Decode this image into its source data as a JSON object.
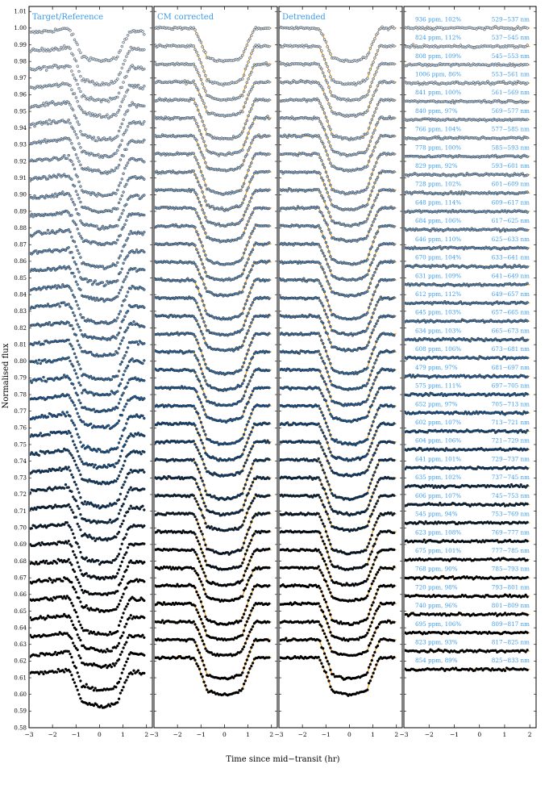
{
  "chart_data": {
    "type": "scatter",
    "ylabel": "Normalised flux",
    "xlabel": "Time since mid−transit (hr)",
    "xlim": [
      -3,
      2.25
    ],
    "ylim": [
      0.58,
      1.013
    ],
    "x_ticks": [
      "−3",
      "−2",
      "−1",
      "0",
      "1",
      "2"
    ],
    "x_tick_values": [
      -3,
      -2,
      -1,
      0,
      1,
      2
    ],
    "y_ticks": [
      "0.58",
      "0.59",
      "0.60",
      "0.61",
      "0.62",
      "0.63",
      "0.64",
      "0.65",
      "0.66",
      "0.67",
      "0.68",
      "0.69",
      "0.70",
      "0.71",
      "0.72",
      "0.73",
      "0.74",
      "0.75",
      "0.76",
      "0.77",
      "0.78",
      "0.79",
      "0.80",
      "0.81",
      "0.82",
      "0.83",
      "0.84",
      "0.85",
      "0.86",
      "0.87",
      "0.88",
      "0.89",
      "0.90",
      "0.91",
      "0.92",
      "0.93",
      "0.94",
      "0.95",
      "0.96",
      "0.97",
      "0.98",
      "0.99",
      "1.00",
      "1.01"
    ],
    "panels": [
      {
        "title": "Target/Reference",
        "offset_start": 1.0,
        "offset_step": 0.011,
        "transit_depth": 0.022,
        "model_line": false
      },
      {
        "title": "CM corrected",
        "offset_start": 1.0,
        "offset_step": 0.0108,
        "transit_depth": 0.022,
        "model_line": true
      },
      {
        "title": "Detrended",
        "offset_start": 1.0,
        "offset_step": 0.0108,
        "transit_depth": 0.022,
        "model_line": true
      },
      {
        "title": "",
        "offset_start": 1.0,
        "offset_step": 0.011,
        "transit_depth": 0,
        "model_line": true
      }
    ],
    "channels": [
      {
        "rms": "936 ppm, 102%",
        "wl": "529−537 nm"
      },
      {
        "rms": "824 ppm, 112%",
        "wl": "537−545 nm"
      },
      {
        "rms": "808 ppm, 109%",
        "wl": "545−553 nm"
      },
      {
        "rms": "1006 ppm, 86%",
        "wl": "553−561 nm"
      },
      {
        "rms": "841 ppm, 100%",
        "wl": "561−569 nm"
      },
      {
        "rms": "840 ppm, 97%",
        "wl": "569−577 nm"
      },
      {
        "rms": "766 ppm, 104%",
        "wl": "577−585 nm"
      },
      {
        "rms": "778 ppm, 100%",
        "wl": "585−593 nm"
      },
      {
        "rms": "829 ppm, 92%",
        "wl": "593−601 nm"
      },
      {
        "rms": "728 ppm, 102%",
        "wl": "601−609 nm"
      },
      {
        "rms": "648 ppm, 114%",
        "wl": "609−617 nm"
      },
      {
        "rms": "684 ppm, 106%",
        "wl": "617−625 nm"
      },
      {
        "rms": "646 ppm, 110%",
        "wl": "625−633 nm"
      },
      {
        "rms": "670 ppm, 104%",
        "wl": "633−641 nm"
      },
      {
        "rms": "631 ppm, 109%",
        "wl": "641−649 nm"
      },
      {
        "rms": "612 ppm, 112%",
        "wl": "649−657 nm"
      },
      {
        "rms": "645 ppm, 103%",
        "wl": "657−665 nm"
      },
      {
        "rms": "634 ppm, 103%",
        "wl": "665−673 nm"
      },
      {
        "rms": "608 ppm, 106%",
        "wl": "673−681 nm"
      },
      {
        "rms": "479 ppm, 97%",
        "wl": "681−697 nm"
      },
      {
        "rms": "575 ppm, 111%",
        "wl": "697−705 nm"
      },
      {
        "rms": "652 ppm, 97%",
        "wl": "705−713 nm"
      },
      {
        "rms": "602 ppm, 107%",
        "wl": "713−721 nm"
      },
      {
        "rms": "604 ppm, 106%",
        "wl": "721−729 nm"
      },
      {
        "rms": "641 ppm, 101%",
        "wl": "729−737 nm"
      },
      {
        "rms": "635 ppm, 102%",
        "wl": "737−745 nm"
      },
      {
        "rms": "606 ppm, 107%",
        "wl": "745−753 nm"
      },
      {
        "rms": "545 ppm, 94%",
        "wl": "753−769 nm"
      },
      {
        "rms": "623 ppm, 108%",
        "wl": "769−777 nm"
      },
      {
        "rms": "675 ppm, 101%",
        "wl": "777−785 nm"
      },
      {
        "rms": "768 ppm, 90%",
        "wl": "785−793 nm"
      },
      {
        "rms": "720 ppm, 98%",
        "wl": "793−801 nm"
      },
      {
        "rms": "740 ppm, 96%",
        "wl": "801−809 nm"
      },
      {
        "rms": "695 ppm, 106%",
        "wl": "809−817 nm"
      },
      {
        "rms": "823 ppm, 93%",
        "wl": "817−825 nm"
      },
      {
        "rms": "854 ppm, 89%",
        "wl": "825−833 nm"
      }
    ],
    "transit": {
      "t_ingress_start": -1.3,
      "t_full_start": -0.75,
      "t_full_end": 0.75,
      "t_egress_end": 1.3
    },
    "colors": {
      "label": "#3d9be9",
      "model": "#f0a020",
      "first_channel": "#cfe0f0",
      "mid_channel": "#1f5a96",
      "last_channel": "#000000",
      "axes": "#000000"
    }
  }
}
